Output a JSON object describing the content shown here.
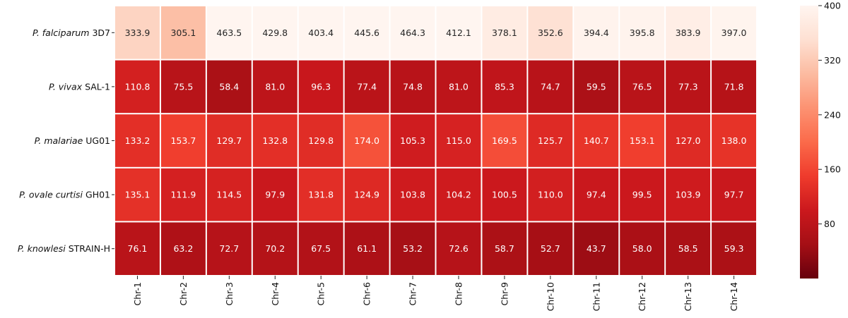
{
  "chart_data": {
    "type": "heatmap",
    "rows": [
      {
        "prefix": "P. falciparum",
        "suffix": "3D7"
      },
      {
        "prefix": "P. vivax",
        "suffix": "SAL-1"
      },
      {
        "prefix": "P. malariae",
        "suffix": "UG01"
      },
      {
        "prefix": "P. ovale curtisi",
        "suffix": "GH01"
      },
      {
        "prefix": "P. knowlesi",
        "suffix": "STRAIN-H"
      }
    ],
    "columns": [
      "Chr-1",
      "Chr-2",
      "Chr-3",
      "Chr-4",
      "Chr-5",
      "Chr-6",
      "Chr-7",
      "Chr-8",
      "Chr-9",
      "Chr-10",
      "Chr-11",
      "Chr-12",
      "Chr-13",
      "Chr-14"
    ],
    "values": [
      [
        333.9,
        305.1,
        463.5,
        429.8,
        403.4,
        445.6,
        464.3,
        412.1,
        378.1,
        352.6,
        394.4,
        395.8,
        383.9,
        397.0
      ],
      [
        110.8,
        75.5,
        58.4,
        81.0,
        96.3,
        77.4,
        74.8,
        81.0,
        85.3,
        74.7,
        59.5,
        76.5,
        77.3,
        71.8
      ],
      [
        133.2,
        153.7,
        129.7,
        132.8,
        129.8,
        174.0,
        105.3,
        115.0,
        169.5,
        125.7,
        140.7,
        153.1,
        127.0,
        138.0
      ],
      [
        135.1,
        111.9,
        114.5,
        97.9,
        131.8,
        124.9,
        103.8,
        104.2,
        100.5,
        110.0,
        97.4,
        99.5,
        103.9,
        97.7
      ],
      [
        76.1,
        63.2,
        72.7,
        70.2,
        67.5,
        61.1,
        53.2,
        72.6,
        58.7,
        52.7,
        43.7,
        58.0,
        58.5,
        59.3
      ]
    ],
    "colorbar": {
      "min": 0,
      "max": 400,
      "ticks": [
        80,
        160,
        240,
        320,
        400
      ],
      "colormap": "Reds_r"
    }
  }
}
